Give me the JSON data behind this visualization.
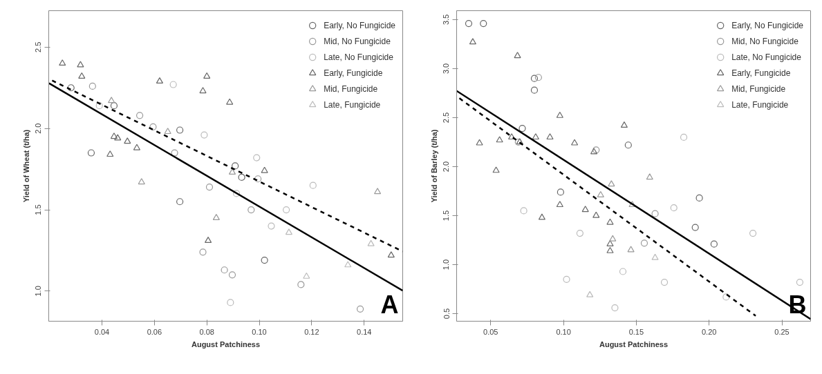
{
  "chart_data": [
    {
      "type": "scatter",
      "xlabel": "August Patchiness",
      "ylabel": "Yield of Wheat (t/ha)",
      "xlim": [
        0.0197,
        0.1547
      ],
      "ylim": [
        0.815,
        2.724
      ],
      "xticks": [
        0.04,
        0.06,
        0.08,
        {
          "value": 0.1,
          "label": "0.10"
        },
        {
          "value": 0.12,
          "label": "0.12"
        },
        0.14
      ],
      "yticks": [
        {
          "value": 1.0,
          "label": "1.0"
        },
        1.5,
        {
          "value": 2.0,
          "label": "2.0"
        },
        2.5
      ],
      "grid": false,
      "legend": "top right",
      "annotations": [
        {
          "text": "A"
        }
      ],
      "series": [
        {
          "name": "Early, No Fungicide",
          "color": "#666666",
          "marker": "circle",
          "x": [
            0.0282,
            0.0359,
            0.0446,
            0.0697,
            0.0697,
            0.0908,
            0.0933,
            0.102
          ],
          "values": [
            2.25,
            1.85,
            2.14,
            1.99,
            1.55,
            1.77,
            1.7,
            1.19
          ]
        },
        {
          "name": "Mid, No Fungicide",
          "color": "#999999",
          "marker": "circle",
          "x": [
            0.0364,
            0.0544,
            0.0595,
            0.0677,
            0.081,
            0.0995,
            0.0969,
            0.0785,
            0.0867,
            0.0897,
            0.1159,
            0.1385
          ],
          "values": [
            2.26,
            2.08,
            2.01,
            1.85,
            1.64,
            1.69,
            1.5,
            1.24,
            1.13,
            1.1,
            1.04,
            0.89
          ]
        },
        {
          "name": "Late, No Fungicide",
          "color": "#bbbbbb",
          "marker": "circle",
          "x": [
            0.039,
            0.0672,
            0.079,
            0.099,
            0.0913,
            0.1046,
            0.1103,
            0.1205,
            0.089
          ],
          "values": [
            2.14,
            2.27,
            1.96,
            1.82,
            1.6,
            1.4,
            1.5,
            1.65,
            0.93
          ]
        },
        {
          "name": "Early, Fungicide",
          "color": "#666666",
          "marker": "triangle",
          "x": [
            0.0249,
            0.0318,
            0.0323,
            0.062,
            0.08,
            0.0785,
            0.0887,
            0.0446,
            0.046,
            0.0497,
            0.0533,
            0.0431,
            0.102,
            0.0805,
            0.1503
          ],
          "values": [
            2.4,
            2.39,
            2.32,
            2.29,
            2.32,
            2.23,
            2.16,
            1.95,
            1.94,
            1.92,
            1.88,
            1.84,
            1.74,
            1.31,
            1.22
          ]
        },
        {
          "name": "Mid, Fungicide",
          "color": "#999999",
          "marker": "triangle",
          "x": [
            0.0436,
            0.0551,
            0.0651,
            0.0897,
            0.0836,
            0.1451
          ],
          "values": [
            2.17,
            1.67,
            1.98,
            1.73,
            1.45,
            1.61
          ]
        },
        {
          "name": "Late, Fungicide",
          "color": "#bbbbbb",
          "marker": "triangle",
          "x": [
            0.1113,
            0.1338,
            0.1426,
            0.118
          ],
          "values": [
            1.36,
            1.16,
            1.29,
            1.09
          ]
        },
        {
          "type": "line",
          "color": "#000000",
          "line_style": "solid",
          "x": [
            0.0198,
            0.1547
          ],
          "values": [
            2.278,
            1.003
          ]
        },
        {
          "type": "line",
          "color": "#000000",
          "line_style": "dashed",
          "x": [
            0.021,
            0.1547
          ],
          "values": [
            2.295,
            1.244
          ]
        }
      ]
    },
    {
      "type": "scatter",
      "xlabel": "August Patchiness",
      "ylabel": "Yield of Barley (t/ha)",
      "xlim": [
        0.0266,
        0.2697
      ],
      "ylim": [
        0.423,
        3.591
      ],
      "xticks": [
        0.05,
        {
          "value": 0.1,
          "label": "0.10"
        },
        0.15,
        {
          "value": 0.2,
          "label": "0.20"
        },
        0.25
      ],
      "yticks": [
        0.5,
        {
          "value": 1.0,
          "label": "1.0"
        },
        1.5,
        {
          "value": 2.0,
          "label": "2.0"
        },
        2.5,
        {
          "value": 3.0,
          "label": "3.0"
        },
        3.5
      ],
      "grid": false,
      "legend": "top right",
      "annotations": [
        {
          "text": "B"
        }
      ],
      "series": [
        {
          "name": "Early, No Fungicide",
          "color": "#666666",
          "marker": "circle",
          "x": [
            0.0349,
            0.045,
            0.08,
            0.08,
            0.0717,
            0.1445,
            0.098,
            0.1933,
            0.1905,
            0.2034
          ],
          "values": [
            3.46,
            3.46,
            2.9,
            2.78,
            2.39,
            2.22,
            1.74,
            1.68,
            1.38,
            1.21
          ]
        },
        {
          "name": "Mid, No Fungicide",
          "color": "#999999",
          "marker": "circle",
          "x": [
            0.0828,
            0.1224,
            0.069,
            0.1555,
            0.1629
          ],
          "values": [
            2.91,
            2.17,
            2.25,
            1.22,
            1.52
          ]
        },
        {
          "name": "Late, No Fungicide",
          "color": "#bbbbbb",
          "marker": "circle",
          "x": [
            0.1826,
            0.1758,
            0.2301,
            0.0727,
            0.1113,
            0.1021,
            0.1408,
            0.1693,
            0.1353,
            0.2117,
            0.2623
          ],
          "values": [
            2.3,
            1.58,
            1.32,
            1.55,
            1.32,
            0.85,
            0.93,
            0.82,
            0.56,
            0.67,
            0.82
          ]
        },
        {
          "name": "Early, Fungicide",
          "color": "#666666",
          "marker": "triangle",
          "x": [
            0.0377,
            0.0684,
            0.0975,
            0.1417,
            0.0423,
            0.0561,
            0.0644,
            0.0699,
            0.0809,
            0.0907,
            0.1076,
            0.1209,
            0.0537,
            0.0975,
            0.115,
            0.1224,
            0.0852,
            0.132,
            0.132,
            0.132
          ],
          "values": [
            3.27,
            3.13,
            2.52,
            2.42,
            2.24,
            2.27,
            2.3,
            2.25,
            2.3,
            2.3,
            2.24,
            2.15,
            1.96,
            1.61,
            1.56,
            1.5,
            1.48,
            1.43,
            1.21,
            1.14
          ]
        },
        {
          "name": "Mid, Fungicide",
          "color": "#999999",
          "marker": "triangle",
          "x": [
            0.1592,
            0.1329,
            0.1255,
            0.1472,
            0.1338,
            0.1463
          ],
          "values": [
            1.89,
            1.82,
            1.71,
            1.61,
            1.26,
            1.15
          ]
        },
        {
          "name": "Late, Fungicide",
          "color": "#bbbbbb",
          "marker": "triangle",
          "x": [
            0.1629,
            0.1181
          ],
          "values": [
            1.07,
            0.69
          ]
        },
        {
          "type": "line",
          "color": "#000000",
          "line_style": "solid",
          "x": [
            0.0266,
            0.2697
          ],
          "values": [
            2.773,
            0.445
          ]
        },
        {
          "type": "line",
          "color": "#000000",
          "line_style": "dashed",
          "x": [
            0.0285,
            0.232
          ],
          "values": [
            2.698,
            0.478
          ]
        }
      ]
    }
  ]
}
